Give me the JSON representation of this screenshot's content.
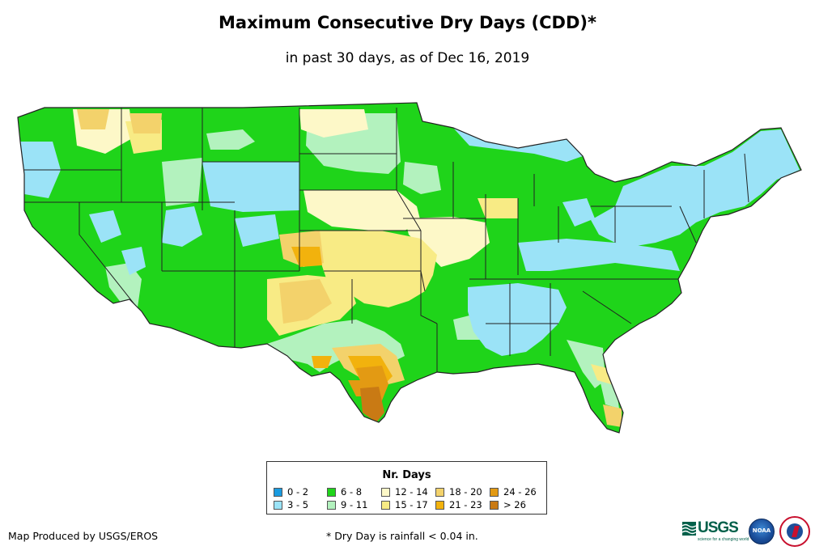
{
  "title": "Maximum Consecutive Dry Days (CDD)*",
  "subtitle": "in past 30 days, as of Dec 16, 2019",
  "legend": {
    "title": "Nr. Days",
    "items": [
      {
        "label": "0 - 2",
        "color": "#1a9be0"
      },
      {
        "label": "3 - 5",
        "color": "#9be3f7"
      },
      {
        "label": "6 - 8",
        "color": "#1fd41a"
      },
      {
        "label": "9 - 11",
        "color": "#b3f2be"
      },
      {
        "label": "12 - 14",
        "color": "#fdf8c8"
      },
      {
        "label": "15 - 17",
        "color": "#f8eb85"
      },
      {
        "label": "18 - 20",
        "color": "#f3d26b"
      },
      {
        "label": "21 - 23",
        "color": "#f2b20d"
      },
      {
        "label": "24 - 26",
        "color": "#e39a13"
      },
      {
        "label": "> 26",
        "color": "#c97a14"
      }
    ]
  },
  "footer": {
    "producer": "Map Produced by USGS/EROS",
    "note": "* Dry Day is rainfall < 0.04 in."
  },
  "logos": {
    "usgs_text": "USGS",
    "usgs_tagline": "science for a changing world",
    "noaa_text": "NOAA"
  }
}
